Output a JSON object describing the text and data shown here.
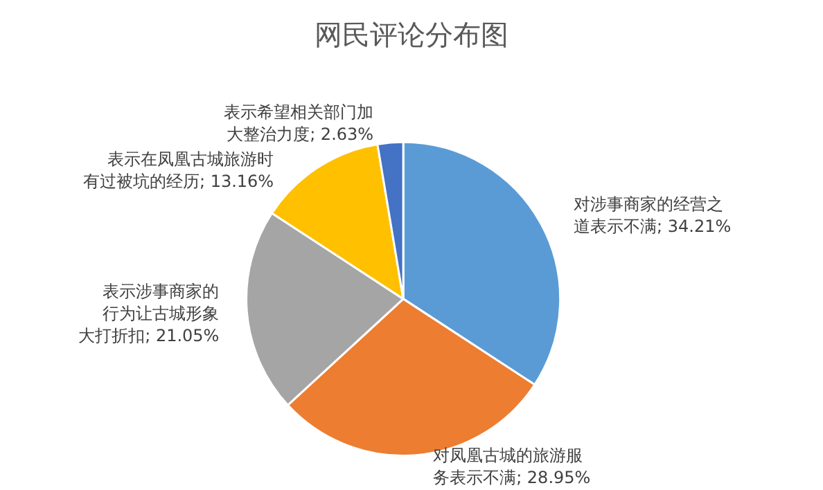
{
  "chart_data": {
    "type": "pie",
    "title": "网民评论分布图",
    "categories": [
      "对涉事商家的经营之道表示不满",
      "对凤凰古城的旅游服务表示不满",
      "表示涉事商家的行为让古城形象大打折扣",
      "表示在凤凰古城旅游时有过被坑的经历",
      "表示希望相关部门加大整治力度"
    ],
    "values": [
      34.21,
      28.95,
      21.05,
      13.16,
      2.63
    ],
    "colors": [
      "#5b9bd5",
      "#ed7d31",
      "#a5a5a5",
      "#ffc000",
      "#4472c4"
    ],
    "value_labels": [
      "34.21%",
      "28.95%",
      "21.05%",
      "13.16%",
      "2.63%"
    ]
  }
}
